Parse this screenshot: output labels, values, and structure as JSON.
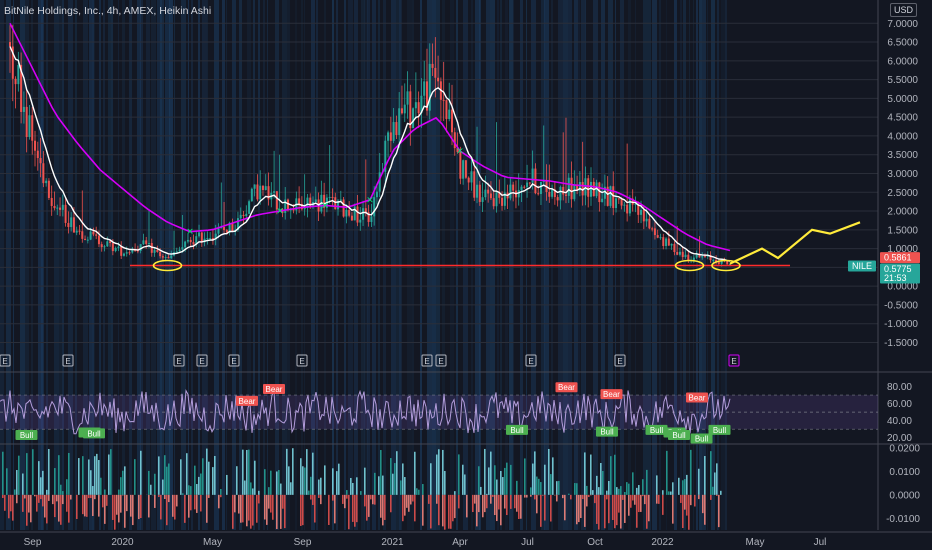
{
  "title": "BitNile Holdings, Inc., 4h, AMEX, Heikin Ashi",
  "currency": "USD",
  "price_axis": {
    "ticks": [
      "7.0000",
      "6.5000",
      "6.0000",
      "5.5000",
      "5.0000",
      "4.5000",
      "4.0000",
      "3.5000",
      "3.0000",
      "2.5000",
      "2.0000",
      "1.5000",
      "1.0000",
      "0.5000",
      "0.0000",
      "-0.5000",
      "-1.0000",
      "-1.5000"
    ]
  },
  "rsi_axis": {
    "ticks": [
      "80.00",
      "60.00",
      "40.00",
      "20.00"
    ]
  },
  "vol_axis": {
    "ticks": [
      "0.0200",
      "0.0100",
      "0.0000",
      "-0.0100"
    ]
  },
  "x_axis": {
    "labels": [
      "Sep",
      "2020",
      "May",
      "Sep",
      "2021",
      "Apr",
      "Jul",
      "Oct",
      "2022",
      "May",
      "Jul"
    ]
  },
  "badges": {
    "ticker": "NILE",
    "last_price": "0.5775",
    "countdown": "21:53",
    "ma_value": "0.5861"
  },
  "colors": {
    "background": "#131722",
    "band": "#1b3a5c",
    "up": "#26a69a",
    "down": "#ef5350",
    "fast_ma": "#ffffff",
    "slow_ma": "#d500f9",
    "projection": "#ffeb3b",
    "support": "#ff2b2b",
    "rsi": "#b39ddb"
  },
  "earnings_label": "E",
  "signals": {
    "bear_label": "Bear",
    "bull_label": "Bull"
  },
  "chart_data": [
    {
      "type": "line",
      "name": "price",
      "style": "heikin-ashi candles",
      "x": [
        "2019-08",
        "2019-09",
        "2019-10",
        "2019-11",
        "2019-12",
        "2020-01",
        "2020-02",
        "2020-03",
        "2020-04",
        "2020-05",
        "2020-06",
        "2020-07",
        "2020-08",
        "2020-09",
        "2020-10",
        "2020-11",
        "2020-12",
        "2021-01",
        "2021-02",
        "2021-03",
        "2021-04",
        "2021-05",
        "2021-06",
        "2021-07",
        "2021-08",
        "2021-09",
        "2021-10",
        "2021-11",
        "2021-12",
        "2022-01",
        "2022-02",
        "2022-03",
        "2022-04"
      ],
      "series": [
        {
          "values": [
            6.5,
            3.8,
            2.2,
            1.5,
            1.2,
            0.9,
            1.1,
            0.7,
            1.2,
            1.4,
            1.6,
            2.6,
            2.2,
            2.1,
            2.3,
            2.0,
            1.8,
            4.5,
            4.8,
            5.6,
            3.2,
            2.3,
            2.4,
            2.9,
            2.5,
            2.6,
            2.6,
            2.3,
            1.9,
            1.2,
            0.8,
            0.75,
            0.6
          ]
        },
        {
          "values": [
            7.0,
            5.8,
            4.6,
            3.8,
            3.1,
            2.6,
            2.1,
            1.7,
            1.45,
            1.5,
            1.7,
            1.9,
            2.0,
            2.1,
            2.15,
            2.1,
            2.3,
            3.6,
            4.2,
            4.5,
            3.6,
            3.2,
            2.9,
            2.85,
            2.8,
            2.7,
            2.65,
            2.5,
            2.2,
            1.8,
            1.4,
            1.1,
            0.95
          ]
        }
      ],
      "projection": {
        "x": [
          "2022-04",
          "2022-05",
          "2022-06",
          "2022-07",
          "2022-08"
        ],
        "values": [
          0.6,
          1.0,
          1.4,
          1.5,
          1.7
        ]
      },
      "support_level": 0.55,
      "ylim": [
        -1.7,
        7.3
      ]
    },
    {
      "type": "line",
      "name": "rsi",
      "ylim": [
        15,
        90
      ],
      "signals": [
        {
          "x": "2019-09",
          "kind": "Bull",
          "value": 22
        },
        {
          "x": "2019-11",
          "kind": "Bull",
          "value": 25
        },
        {
          "x": "2019-12",
          "kind": "Bull",
          "value": 24
        },
        {
          "x": "2020-06",
          "kind": "Bear",
          "value": 62
        },
        {
          "x": "2020-08",
          "kind": "Bear",
          "value": 76
        },
        {
          "x": "2021-06",
          "kind": "Bull",
          "value": 28
        },
        {
          "x": "2021-09",
          "kind": "Bear",
          "value": 78
        },
        {
          "x": "2021-10",
          "kind": "Bull",
          "value": 26
        },
        {
          "x": "2021-11",
          "kind": "Bear",
          "value": 70
        },
        {
          "x": "2022-01",
          "kind": "Bull",
          "value": 25
        },
        {
          "x": "2022-01",
          "kind": "Bull",
          "value": 28
        },
        {
          "x": "2022-02",
          "kind": "Bear",
          "value": 66
        },
        {
          "x": "2022-02",
          "kind": "Bull",
          "value": 22
        },
        {
          "x": "2022-03",
          "kind": "Bull",
          "value": 28
        },
        {
          "x": "2022-03",
          "kind": "Bull",
          "value": 18
        }
      ]
    },
    {
      "type": "bar",
      "name": "histogram",
      "ylim": [
        -0.015,
        0.02
      ]
    }
  ]
}
